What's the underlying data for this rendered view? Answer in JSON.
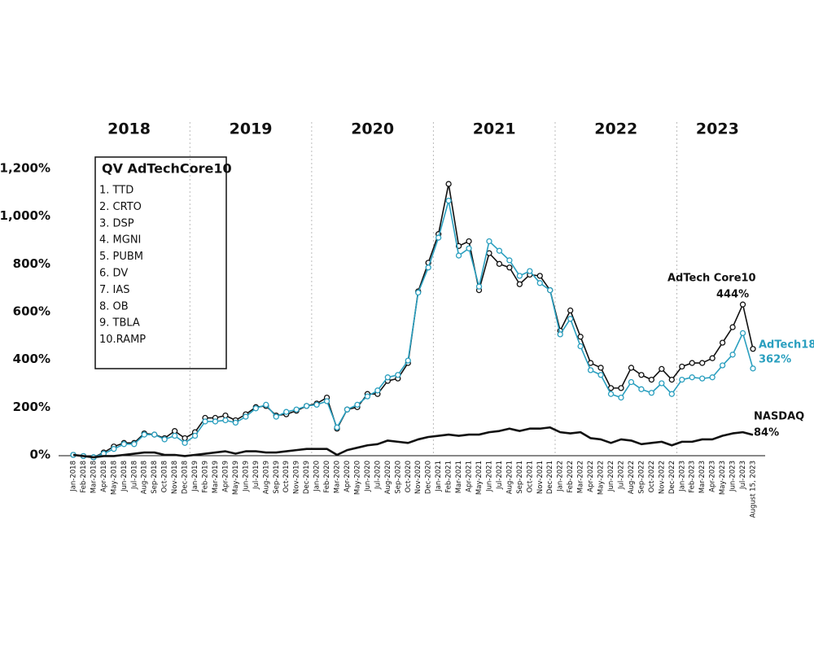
{
  "chart_data": {
    "type": "line",
    "years": [
      "2018",
      "2019",
      "2020",
      "2021",
      "2022",
      "2023"
    ],
    "legend_box": {
      "title": "QV AdTechCore10",
      "items": [
        "1. TTD",
        "2. CRTO",
        "3. DSP",
        "4. MGNI",
        "5. PUBM",
        "6. DV",
        "7. IAS",
        "8. OB",
        "9. TBLA",
        "10.RAMP"
      ]
    },
    "categories": [
      "Jan-2018",
      "Feb-2018",
      "Mar-2018",
      "Apr-2018",
      "May-2018",
      "Jun-2018",
      "Jul-2018",
      "Aug-2018",
      "Sep-2018",
      "Oct-2018",
      "Nov-2018",
      "Dec-2018",
      "Jan-2019",
      "Feb-2019",
      "Mar-2019",
      "Apr-2019",
      "May-2019",
      "Jun-2019",
      "Jul-2019",
      "Aug-2019",
      "Sep-2019",
      "Oct-2019",
      "Nov-2019",
      "Dec-2019",
      "Jan-2020",
      "Feb-2020",
      "Mar-2020",
      "Apr-2020",
      "May-2020",
      "Jun-2020",
      "Jul-2020",
      "Aug-2020",
      "Sep-2020",
      "Oct-2020",
      "Nov-2020",
      "Dec-2020",
      "Jan-2021",
      "Feb-2021",
      "Mar-2021",
      "Apr-2021",
      "May-2021",
      "Jun-2021",
      "Jul-2021",
      "Aug-2021",
      "Sep-2021",
      "Oct-2021",
      "Nov-2021",
      "Dec-2021",
      "Jan-2022",
      "Feb-2022",
      "Mar-2022",
      "Apr-2022",
      "May-2022",
      "Jun-2022",
      "Jul-2022",
      "Aug-2022",
      "Sep-2022",
      "Oct-2022",
      "Nov-2022",
      "Dec-2022",
      "Jan-2023",
      "Feb-2023",
      "Mar-2023",
      "Apr-2023",
      "May-2023",
      "Jun-2023",
      "Jul-2023",
      "August 15, 2023"
    ],
    "series": [
      {
        "name": "AdTech Core10",
        "end_label": "444%",
        "color": "#111111",
        "markers": true,
        "values": [
          0,
          -5,
          -10,
          10,
          35,
          50,
          50,
          90,
          85,
          70,
          100,
          70,
          95,
          155,
          155,
          165,
          145,
          170,
          200,
          205,
          165,
          170,
          185,
          205,
          215,
          240,
          110,
          190,
          200,
          255,
          255,
          310,
          320,
          385,
          685,
          805,
          925,
          1135,
          875,
          895,
          690,
          845,
          800,
          785,
          715,
          755,
          750,
          690,
          520,
          605,
          495,
          385,
          365,
          280,
          280,
          365,
          335,
          315,
          360,
          315,
          370,
          385,
          385,
          405,
          470,
          535,
          630,
          444
        ]
      },
      {
        "name": "AdTech18",
        "end_label": "362%",
        "color": "#2a9fbf",
        "markers": true,
        "values": [
          0,
          -5,
          -10,
          5,
          25,
          45,
          45,
          85,
          85,
          65,
          80,
          50,
          80,
          140,
          140,
          145,
          135,
          160,
          195,
          210,
          160,
          180,
          190,
          205,
          210,
          225,
          115,
          190,
          210,
          245,
          270,
          325,
          335,
          395,
          680,
          785,
          910,
          1065,
          835,
          865,
          705,
          895,
          855,
          815,
          750,
          770,
          720,
          690,
          505,
          570,
          455,
          355,
          335,
          255,
          240,
          305,
          275,
          260,
          300,
          255,
          315,
          325,
          320,
          325,
          375,
          420,
          510,
          362
        ]
      },
      {
        "name": "NASDAQ",
        "end_label": "84%",
        "color": "#111111",
        "markers": false,
        "values": [
          0,
          -5,
          -10,
          -5,
          -5,
          0,
          5,
          10,
          10,
          0,
          0,
          -5,
          0,
          5,
          10,
          15,
          5,
          15,
          15,
          10,
          10,
          15,
          20,
          25,
          25,
          25,
          0,
          20,
          30,
          40,
          45,
          60,
          55,
          50,
          65,
          75,
          80,
          85,
          80,
          85,
          85,
          95,
          100,
          110,
          100,
          110,
          110,
          115,
          95,
          90,
          95,
          70,
          65,
          50,
          65,
          60,
          45,
          50,
          55,
          40,
          55,
          55,
          65,
          65,
          80,
          90,
          95,
          84
        ]
      }
    ],
    "ylim": [
      0,
      1200
    ],
    "yticks": [
      {
        "value": 0,
        "label": "0%"
      },
      {
        "value": 200,
        "label": "200%"
      },
      {
        "value": 400,
        "label": "400%"
      },
      {
        "value": 600,
        "label": "600%"
      },
      {
        "value": 800,
        "label": "800%"
      },
      {
        "value": 1000,
        "label": "1,000%"
      },
      {
        "value": 1200,
        "label": "1,200%"
      }
    ]
  }
}
